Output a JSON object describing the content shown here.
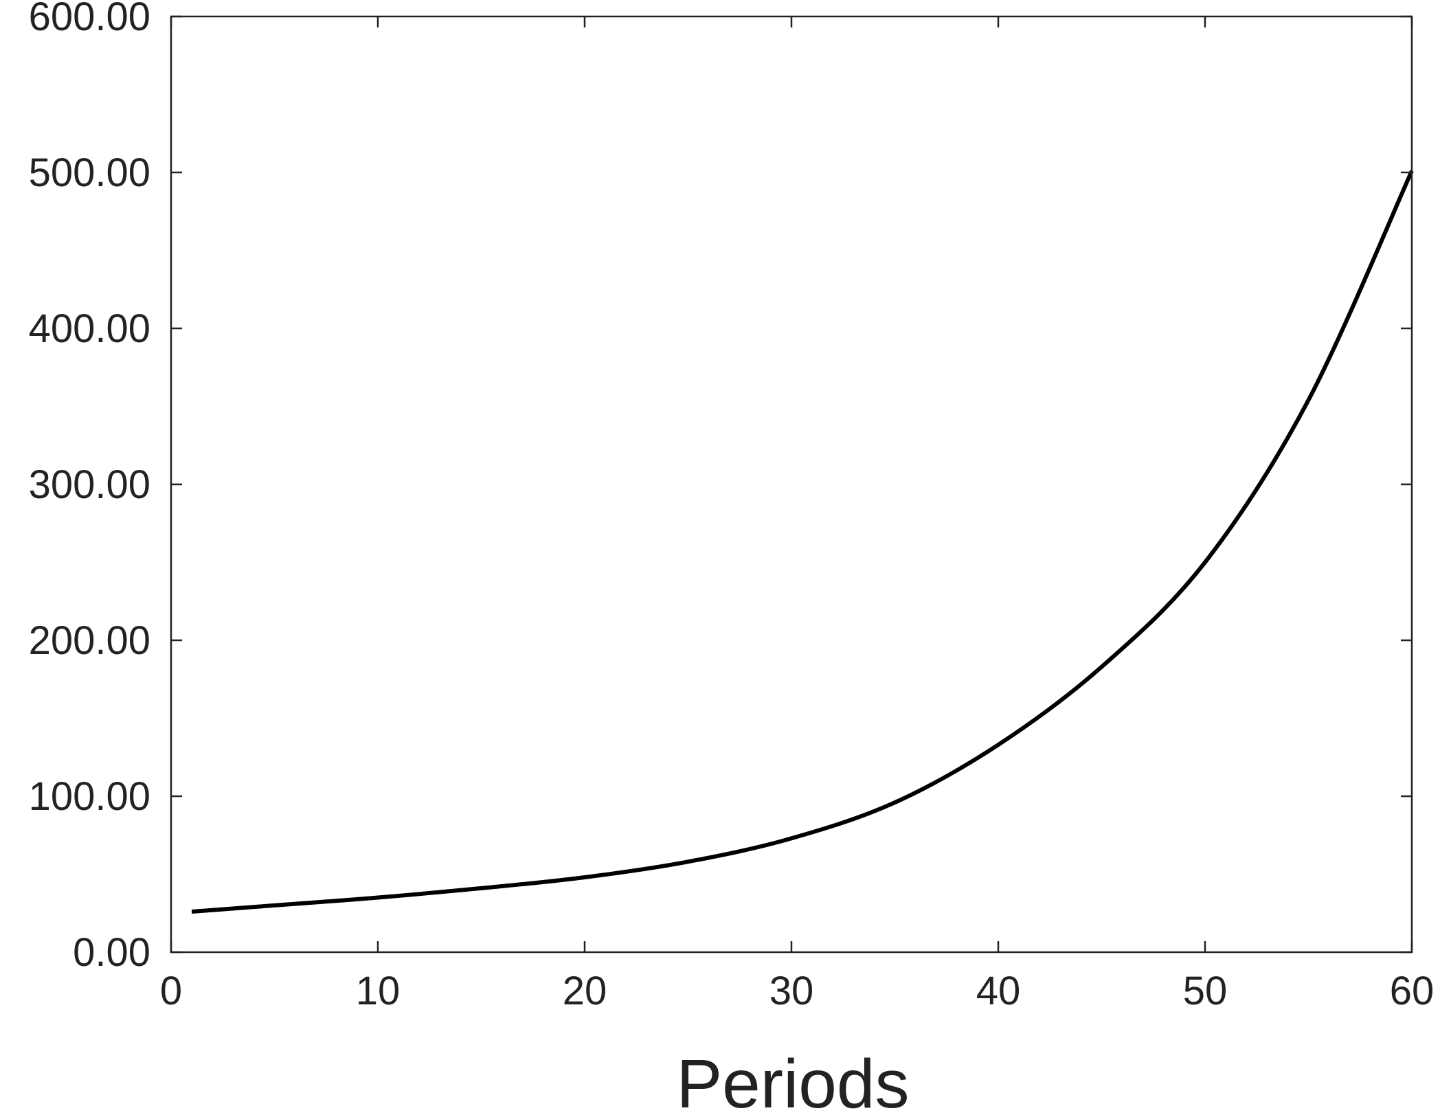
{
  "chart_data": {
    "type": "line",
    "title": "",
    "xlabel": "Periods",
    "ylabel": "",
    "xlim": [
      0,
      60
    ],
    "ylim": [
      0,
      600
    ],
    "x_ticks": [
      "0",
      "10",
      "20",
      "30",
      "40",
      "50",
      "60"
    ],
    "y_ticks": [
      "0.00",
      "100.00",
      "200.00",
      "300.00",
      "400.00",
      "500.00",
      "600.00"
    ],
    "grid": false,
    "legend": "none",
    "line_color": "#000000",
    "series": [
      {
        "x": [
          1,
          5,
          10,
          15,
          20,
          25,
          30,
          35,
          40,
          45,
          50,
          55,
          60
        ],
        "y": [
          26,
          30,
          35,
          41,
          48,
          58,
          73,
          96,
          133,
          183,
          250,
          354,
          501
        ]
      }
    ]
  }
}
